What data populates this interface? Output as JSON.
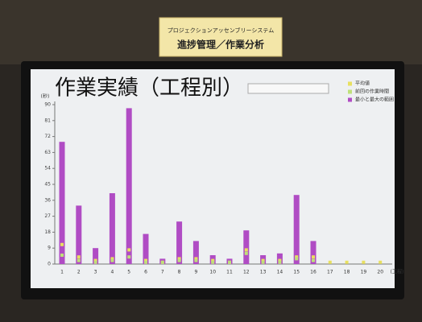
{
  "sign": {
    "line1": "プロジェクションアッセンブリーシステム",
    "line2": "進捗管理／作業分析"
  },
  "chart_data": {
    "type": "bar",
    "title": "作業実績（工程別）",
    "y_label": "(秒)",
    "x_label": "(工程)",
    "categories": [
      "1",
      "2",
      "3",
      "4",
      "5",
      "6",
      "7",
      "8",
      "9",
      "10",
      "11",
      "12",
      "13",
      "14",
      "15",
      "16",
      "17",
      "18",
      "19",
      "20"
    ],
    "series": [
      {
        "name": "平均値",
        "color": "#e8e060",
        "kind": "point",
        "values": [
          11,
          4,
          2,
          3,
          8,
          2,
          1,
          3,
          3,
          2,
          1,
          8,
          2,
          2,
          4,
          4,
          1,
          1,
          1,
          1
        ]
      },
      {
        "name": "前回の作業時間",
        "color": "#bfe07a",
        "kind": "point",
        "values": [
          5,
          2,
          1,
          2,
          4,
          1,
          1,
          2,
          2,
          1,
          1,
          6,
          1,
          1,
          3,
          2,
          null,
          null,
          null,
          null
        ]
      },
      {
        "name": "最小と最大の範囲",
        "color": "#b04cc4",
        "kind": "bar",
        "values": [
          69,
          33,
          9,
          40,
          88,
          17,
          3,
          24,
          13,
          5,
          3,
          19,
          5,
          6,
          39,
          13,
          null,
          null,
          null,
          null
        ]
      }
    ],
    "ylim": [
      0,
      90
    ],
    "yticks": [
      0,
      9,
      18,
      27,
      36,
      45,
      54,
      63,
      72,
      81,
      90
    ],
    "grid": false
  }
}
